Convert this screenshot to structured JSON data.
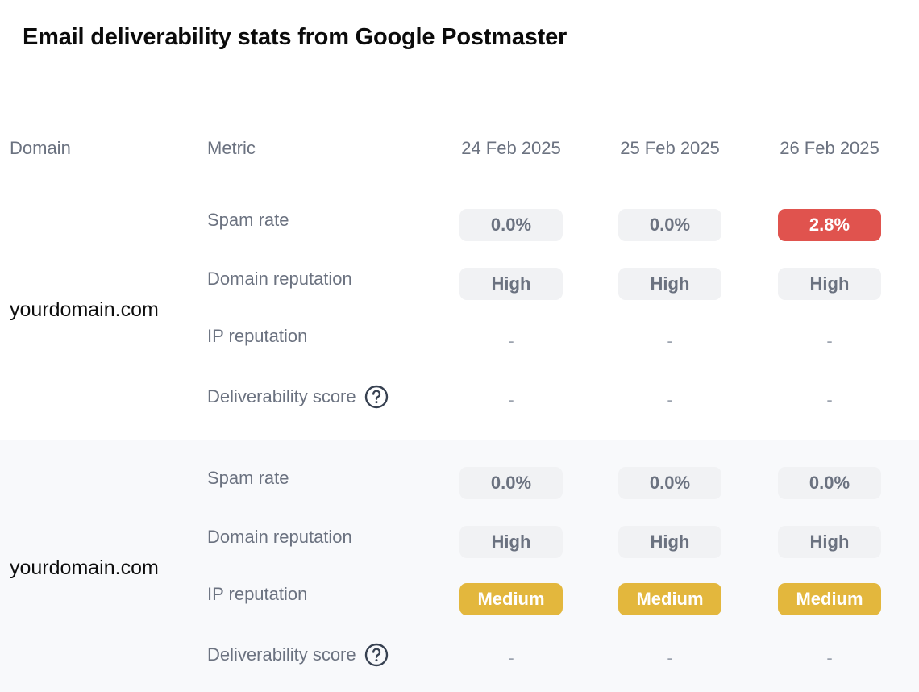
{
  "title": "Email deliverability stats from Google Postmaster",
  "columns": {
    "domain": "Domain",
    "metric": "Metric",
    "dates": [
      "24 Feb 2025",
      "25 Feb 2025",
      "26 Feb 2025"
    ]
  },
  "colors": {
    "neutral_pill_bg": "#f1f2f4",
    "danger_pill_bg": "#e0534e",
    "warning_pill_bg": "#e3b73d"
  },
  "groups": [
    {
      "domain": "yourdomain.com",
      "metrics": [
        {
          "label": "Spam rate",
          "values": [
            {
              "text": "0.0%",
              "status": "neutral"
            },
            {
              "text": "0.0%",
              "status": "neutral"
            },
            {
              "text": "2.8%",
              "status": "danger"
            }
          ]
        },
        {
          "label": "Domain reputation",
          "values": [
            {
              "text": "High",
              "status": "neutral"
            },
            {
              "text": "High",
              "status": "neutral"
            },
            {
              "text": "High",
              "status": "neutral"
            }
          ]
        },
        {
          "label": "IP reputation",
          "values": [
            {
              "text": "-",
              "status": "empty"
            },
            {
              "text": "-",
              "status": "empty"
            },
            {
              "text": "-",
              "status": "empty"
            }
          ]
        },
        {
          "label": "Deliverability score",
          "icon": "help-circle-icon",
          "values": [
            {
              "text": "-",
              "status": "empty"
            },
            {
              "text": "-",
              "status": "empty"
            },
            {
              "text": "-",
              "status": "empty"
            }
          ]
        }
      ]
    },
    {
      "domain": "yourdomain.com",
      "metrics": [
        {
          "label": "Spam rate",
          "values": [
            {
              "text": "0.0%",
              "status": "neutral"
            },
            {
              "text": "0.0%",
              "status": "neutral"
            },
            {
              "text": "0.0%",
              "status": "neutral"
            }
          ]
        },
        {
          "label": "Domain reputation",
          "values": [
            {
              "text": "High",
              "status": "neutral"
            },
            {
              "text": "High",
              "status": "neutral"
            },
            {
              "text": "High",
              "status": "neutral"
            }
          ]
        },
        {
          "label": "IP reputation",
          "values": [
            {
              "text": "Medium",
              "status": "warning"
            },
            {
              "text": "Medium",
              "status": "warning"
            },
            {
              "text": "Medium",
              "status": "warning"
            }
          ]
        },
        {
          "label": "Deliverability score",
          "icon": "help-circle-icon",
          "values": [
            {
              "text": "-",
              "status": "empty"
            },
            {
              "text": "-",
              "status": "empty"
            },
            {
              "text": "-",
              "status": "empty"
            }
          ]
        }
      ]
    }
  ]
}
